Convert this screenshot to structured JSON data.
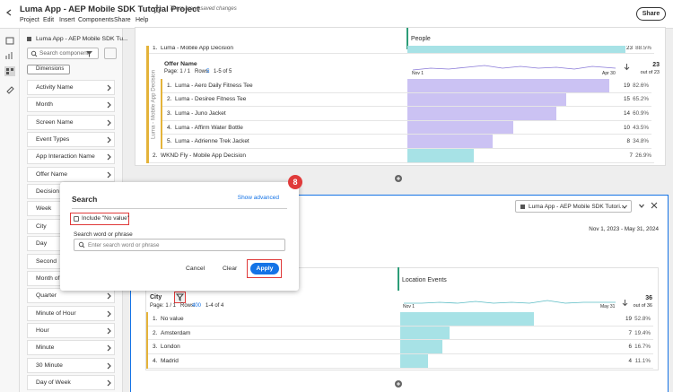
{
  "header": {
    "title": "Luma App - AEP Mobile SDK Tutorial Project",
    "status": "There are unsaved changes",
    "menu": [
      "Project",
      "Edit",
      "Insert",
      "Components",
      "Share",
      "Help"
    ],
    "share": "Share"
  },
  "sidebar": {
    "title": "Luma App - AEP Mobile SDK Tu...",
    "search_placeholder": "Search component",
    "filter_chip": "Dimensions",
    "items": [
      "Activity Name",
      "Month",
      "Screen Name",
      "Event Types",
      "App Interaction Name",
      "Offer Name",
      "Decision O",
      "Week",
      "City",
      "Day",
      "Second",
      "Month of Y",
      "Quarter",
      "Minute of Hour",
      "Hour",
      "Minute",
      "30 Minute",
      "Day of Week"
    ]
  },
  "panel1": {
    "metric": "People",
    "top_row": {
      "rank": "1.",
      "label": "Luma - Mobile App Decision",
      "value": 23,
      "percent": 88.5,
      "percent_label": "88.5%"
    },
    "breakdown": {
      "dimension": "Offer Name",
      "page": "Page: 1 / 1",
      "rows_label": "Rows:",
      "rows_count": 5,
      "range": "1-5 of 5",
      "vertical_label": "Luma - Mobile App Decision",
      "start": "Nov 1",
      "end": "Apr 30",
      "total": 23,
      "total_label": "out of 23",
      "rows": [
        {
          "rank": "1.",
          "label": "Luma - Aero Daily Fitness Tee",
          "value": 19,
          "percent": 82.6,
          "percent_label": "82.6%"
        },
        {
          "rank": "2.",
          "label": "Luma - Desiree Fitness Tee",
          "value": 15,
          "percent": 65.2,
          "percent_label": "65.2%"
        },
        {
          "rank": "3.",
          "label": "Luma - Juno Jacket",
          "value": 14,
          "percent": 60.9,
          "percent_label": "60.9%"
        },
        {
          "rank": "4.",
          "label": "Luma - Affirm Water Bottle",
          "value": 10,
          "percent": 43.5,
          "percent_label": "43.5%"
        },
        {
          "rank": "5.",
          "label": "Luma - Adrienne Trek Jacket",
          "value": 8,
          "percent": 34.8,
          "percent_label": "34.8%"
        }
      ]
    },
    "row2": {
      "rank": "2.",
      "label": "WKND Fly - Mobile App Decision",
      "value": 7,
      "percent": 26.9,
      "percent_label": "26.9%"
    }
  },
  "panel2": {
    "project": "Luma App - AEP Mobile SDK Tutori...",
    "date_range": "Nov 1, 2023 - May 31, 2024",
    "metric": "Location Events",
    "dimension": "City",
    "page": "Page: 1 / 1",
    "rows_label": "Rows:",
    "rows_count": 400,
    "range": "1-4 of 4",
    "start": "Nov 1",
    "end": "May 31",
    "total": 36,
    "total_label": "out of 36",
    "rows": [
      {
        "rank": "1.",
        "label": "No value",
        "value": 19,
        "percent": 52.8,
        "percent_label": "52.8%"
      },
      {
        "rank": "2.",
        "label": "Amsterdam",
        "value": 7,
        "percent": 19.4,
        "percent_label": "19.4%"
      },
      {
        "rank": "3.",
        "label": "London",
        "value": 6,
        "percent": 16.7,
        "percent_label": "16.7%"
      },
      {
        "rank": "4.",
        "label": "Madrid",
        "value": 4,
        "percent": 11.1,
        "percent_label": "11.1%"
      }
    ]
  },
  "dialog": {
    "title": "Search",
    "advanced": "Show advanced",
    "checkbox": "Include \"No value\"",
    "field_label": "Search word or phrase",
    "placeholder": "Enter search word or phrase",
    "cancel": "Cancel",
    "clear": "Clear",
    "apply": "Apply",
    "step": "8"
  }
}
